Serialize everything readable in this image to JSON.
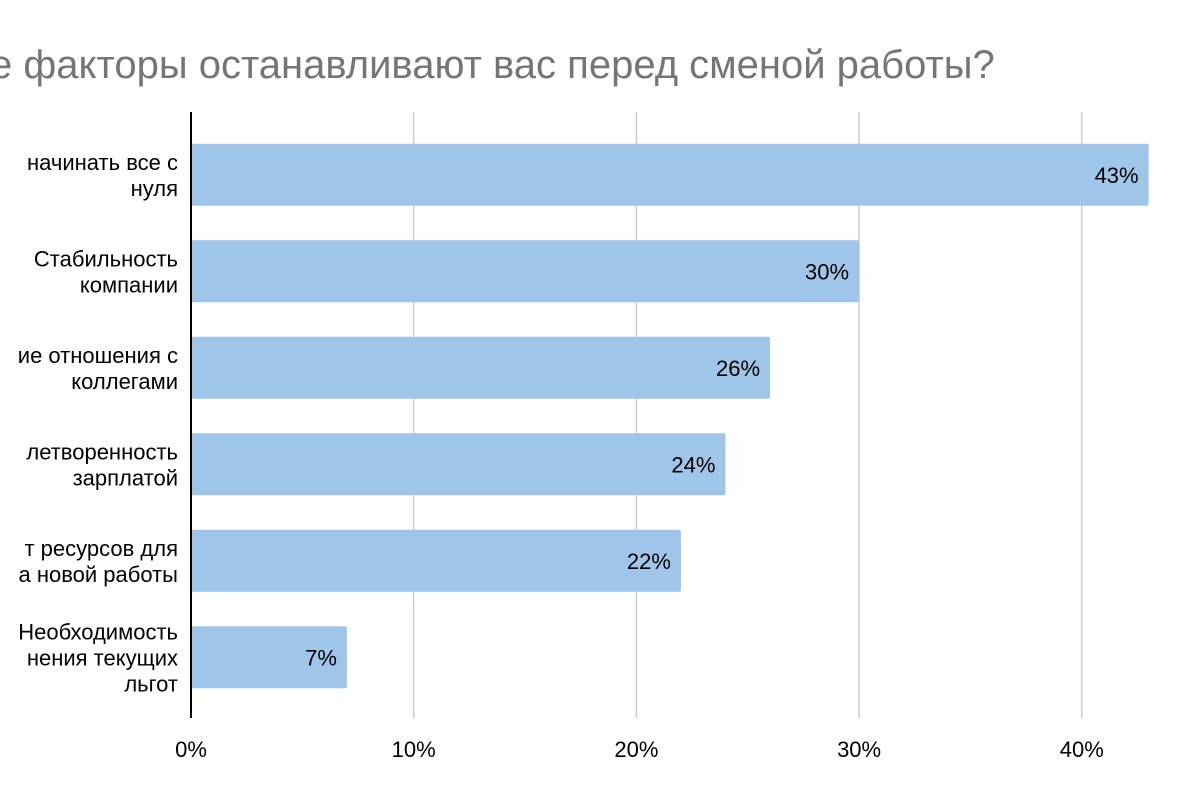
{
  "chart_data": {
    "type": "bar",
    "orientation": "horizontal",
    "title": "е факторы останавливают вас перед сменой работы?",
    "categories": [
      [
        "начинать все с",
        "нуля"
      ],
      [
        "Стабильность",
        "компании"
      ],
      [
        "ие отношения с",
        "коллегами"
      ],
      [
        "летворенность",
        "зарплатой"
      ],
      [
        "т ресурсов для",
        "а новой работы"
      ],
      [
        "Необходимость",
        "нения текущих",
        "льгот"
      ]
    ],
    "series": [
      {
        "values": [
          43,
          30,
          26,
          24,
          22,
          7
        ]
      }
    ],
    "data_labels": [
      "43%",
      "30%",
      "26%",
      "24%",
      "22%",
      "7%"
    ],
    "xlim": [
      0,
      43
    ],
    "x_ticks": [
      0,
      10,
      20,
      30,
      40
    ],
    "x_tick_labels": [
      "0%",
      "10%",
      "20%",
      "30%",
      "40%"
    ],
    "xlabel": "",
    "ylabel": "",
    "grid": "vertical",
    "legend": "none",
    "colors": {
      "bar": "#9fc5e8",
      "grid": "#cccccc",
      "axis": "#000000",
      "title": "#757575",
      "text": "#000000"
    }
  }
}
